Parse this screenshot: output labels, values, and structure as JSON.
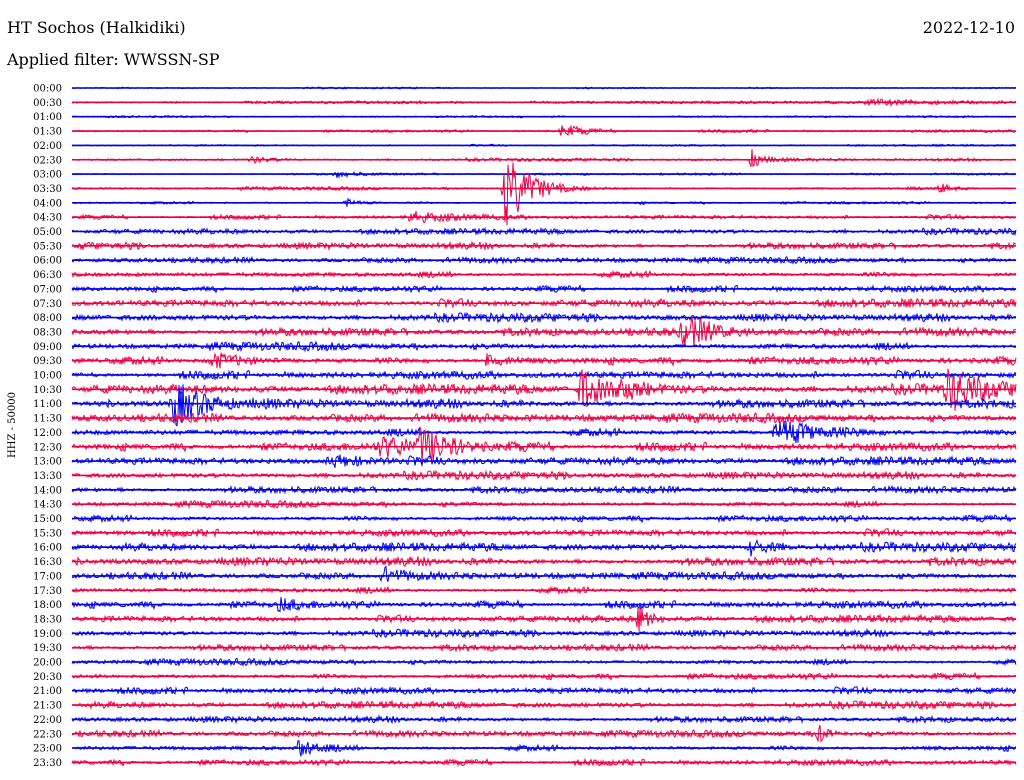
{
  "header": {
    "station": "HT Sochos (Halkidiki)",
    "date": "2022-12-10",
    "filter": "Applied filter: WWSSN-SP"
  },
  "chart_data": {
    "type": "line",
    "title": "HT Sochos (Halkidiki)",
    "ylabel": "HHZ - 50000",
    "colors": [
      "#0000ee",
      "#ee0044"
    ],
    "row_labels": [
      "00:00",
      "00:30",
      "01:00",
      "01:30",
      "02:00",
      "02:30",
      "03:00",
      "03:30",
      "04:00",
      "04:30",
      "05:00",
      "05:30",
      "06:00",
      "06:30",
      "07:00",
      "07:30",
      "08:00",
      "08:30",
      "09:00",
      "09:30",
      "10:00",
      "10:30",
      "11:00",
      "11:30",
      "12:00",
      "12:30",
      "13:00",
      "13:30",
      "14:00",
      "14:30",
      "15:00",
      "15:30",
      "16:00",
      "16:30",
      "17:00",
      "17:30",
      "18:00",
      "18:30",
      "19:00",
      "19:30",
      "20:00",
      "20:30",
      "21:00",
      "21:30",
      "22:00",
      "22:30",
      "23:00",
      "23:30"
    ],
    "noise_level": [
      0.5,
      0.8,
      0.5,
      0.8,
      0.5,
      0.8,
      0.6,
      0.9,
      0.8,
      1.2,
      1.5,
      1.8,
      1.6,
      1.9,
      1.8,
      2.2,
      2.1,
      2.3,
      2.2,
      2.4,
      2.3,
      2.6,
      2.5,
      2.4,
      2.3,
      2.4,
      2.2,
      2.0,
      1.9,
      1.8,
      1.9,
      2.0,
      2.2,
      2.4,
      2.0,
      1.9,
      2.1,
      1.9,
      1.8,
      1.8,
      1.7,
      1.8,
      1.9,
      1.8,
      1.7,
      1.8,
      1.8,
      1.7
    ],
    "events": [
      {
        "row": 1,
        "x": 0.85,
        "amp": 2.5,
        "width": 0.07
      },
      {
        "row": 3,
        "x": 0.52,
        "amp": 7,
        "width": 0.02
      },
      {
        "row": 5,
        "x": 0.19,
        "amp": 3,
        "width": 0.02
      },
      {
        "row": 5,
        "x": 0.72,
        "amp": 10,
        "width": 0.012
      },
      {
        "row": 6,
        "x": 0.28,
        "amp": 3,
        "width": 0.02
      },
      {
        "row": 7,
        "x": 0.46,
        "amp": 38,
        "width": 0.025
      },
      {
        "row": 7,
        "x": 0.92,
        "amp": 5,
        "width": 0.015
      },
      {
        "row": 8,
        "x": 0.29,
        "amp": 4,
        "width": 0.015
      },
      {
        "row": 9,
        "x": 0.36,
        "amp": 5,
        "width": 0.04
      },
      {
        "row": 17,
        "x": 0.65,
        "amp": 16,
        "width": 0.03
      },
      {
        "row": 19,
        "x": 0.15,
        "amp": 8,
        "width": 0.03
      },
      {
        "row": 19,
        "x": 0.44,
        "amp": 7,
        "width": 0.02
      },
      {
        "row": 21,
        "x": 0.54,
        "amp": 22,
        "width": 0.02
      },
      {
        "row": 21,
        "x": 0.58,
        "amp": 9,
        "width": 0.03
      },
      {
        "row": 21,
        "x": 0.93,
        "amp": 20,
        "width": 0.03
      },
      {
        "row": 22,
        "x": 0.11,
        "amp": 22,
        "width": 0.03
      },
      {
        "row": 24,
        "x": 0.75,
        "amp": 14,
        "width": 0.04
      },
      {
        "row": 25,
        "x": 0.33,
        "amp": 8,
        "width": 0.04
      },
      {
        "row": 25,
        "x": 0.37,
        "amp": 18,
        "width": 0.03
      },
      {
        "row": 26,
        "x": 0.28,
        "amp": 6,
        "width": 0.04
      },
      {
        "row": 32,
        "x": 0.72,
        "amp": 8,
        "width": 0.02
      },
      {
        "row": 34,
        "x": 0.33,
        "amp": 7,
        "width": 0.02
      },
      {
        "row": 36,
        "x": 0.22,
        "amp": 5,
        "width": 0.02
      },
      {
        "row": 37,
        "x": 0.6,
        "amp": 12,
        "width": 0.012
      },
      {
        "row": 45,
        "x": 0.79,
        "amp": 10,
        "width": 0.01
      },
      {
        "row": 46,
        "x": 0.24,
        "amp": 10,
        "width": 0.015
      }
    ]
  }
}
